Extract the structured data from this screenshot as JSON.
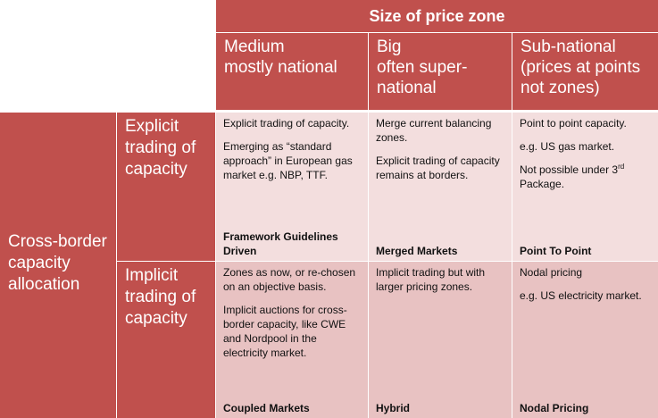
{
  "header": {
    "title": "Size of price zone",
    "columns": [
      {
        "line1": "Medium",
        "line2": "mostly national",
        "line3": ""
      },
      {
        "line1": "Big",
        "line2": "often super-",
        "line3": "national"
      },
      {
        "line1": "Sub-national",
        "line2": "(prices at points",
        "line3": "not zones)"
      }
    ]
  },
  "rows": {
    "group_label_line1": "Cross-border",
    "group_label_line2": "capacity",
    "group_label_line3": "allocation",
    "explicit": {
      "label_line1": "Explicit",
      "label_line2": "trading of",
      "label_line3": "capacity",
      "cells": [
        {
          "p1": "Explicit trading of capacity.",
          "p2": "Emerging as “standard approach” in European gas market e.g. NBP, TTF.",
          "footer_line1": "Framework Guidelines",
          "footer_line2": "Driven"
        },
        {
          "p1": "Merge current balancing zones.",
          "p2": "Explicit trading of capacity remains at borders.",
          "footer_line1": "",
          "footer_line2": "Merged Markets"
        },
        {
          "p1": "Point to point capacity.",
          "p2": "e.g. US gas market.",
          "p3_pre": "Not possible under 3",
          "p3_sup": "rd",
          "p3_post": " Package.",
          "footer_line1": "",
          "footer_line2": "Point To Point"
        }
      ]
    },
    "implicit": {
      "label_line1": "Implicit",
      "label_line2": "trading of",
      "label_line3": "capacity",
      "cells": [
        {
          "p1": "Zones as now, or re-chosen on an objective basis.",
          "p2": "Implicit auctions for cross-border capacity, like CWE and Nordpool in the electricity market.",
          "footer": "Coupled Markets"
        },
        {
          "p1": "Implicit trading but with larger pricing zones.",
          "p2": "",
          "footer": "Hybrid"
        },
        {
          "p1": "Nodal pricing",
          "p2": "e.g. US electricity market.",
          "footer": "Nodal Pricing"
        }
      ]
    }
  }
}
